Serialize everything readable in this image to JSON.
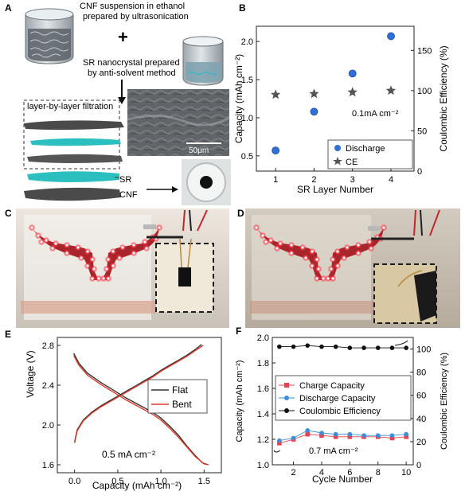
{
  "panels": {
    "A": {
      "letter": "A",
      "cnf_text_1": "CNF suspension in ethanol",
      "cnf_text_2": "prepared by ultrasonication",
      "plus": "+",
      "sr_text_1": "SR nanocrystal prepared",
      "sr_text_2": "by anti-solvent method",
      "filtration_label": "layer-by-layer filtration",
      "scale_bar": "50μm",
      "label_sr": "SR",
      "label_cnf": "CNF"
    },
    "B": {
      "letter": "B"
    },
    "C": {
      "letter": "C"
    },
    "D": {
      "letter": "D"
    },
    "E": {
      "letter": "E"
    },
    "F": {
      "letter": "F"
    }
  },
  "chart_data": [
    {
      "panel": "B",
      "type": "scatter",
      "xlabel": "SR Layer Number",
      "ylabel": "Capacity (mAh cm⁻²)",
      "y2label": "Coulombic Efficiency (%)",
      "x_ticks": [
        "1",
        "2",
        "3",
        "4"
      ],
      "y_ticks": [
        "0.5",
        "1.0",
        "1.5",
        "2.0"
      ],
      "y2_ticks": [
        "0",
        "50",
        "100",
        "150"
      ],
      "xlim": [
        0.5,
        4.6
      ],
      "ylim": [
        0.3,
        2.2
      ],
      "y2lim": [
        0,
        180
      ],
      "annotation": "0.1mA cm⁻²",
      "legend": [
        "Discharge",
        "CE"
      ],
      "series": [
        {
          "name": "Discharge",
          "axis": "left",
          "marker": "circle",
          "color": "#2f6fd6",
          "x": [
            1,
            2,
            3,
            4
          ],
          "y": [
            0.57,
            1.08,
            1.58,
            2.07
          ]
        },
        {
          "name": "CE",
          "axis": "right",
          "marker": "star",
          "color": "#555555",
          "x": [
            1,
            2,
            3,
            4
          ],
          "y": [
            95,
            96,
            98,
            100
          ]
        }
      ]
    },
    {
      "panel": "E",
      "type": "line",
      "xlabel": "Capacity (mAh cm⁻²)",
      "ylabel": "Voltage (V)",
      "x_ticks": [
        "0.0",
        "0.5",
        "1.0",
        "1.5"
      ],
      "y_ticks": [
        "1.6",
        "2.0",
        "2.4",
        "2.8"
      ],
      "xlim": [
        -0.2,
        1.7
      ],
      "ylim": [
        1.52,
        2.88
      ],
      "annotation": "0.5 mA cm⁻²",
      "legend": [
        "Flat",
        "Bent"
      ],
      "series": [
        {
          "name": "Flat",
          "color": "#333333",
          "curves": [
            {
              "x": [
                0.0,
                0.03,
                0.1,
                0.2,
                0.3,
                0.4,
                0.5,
                0.6,
                0.7,
                0.8,
                0.9,
                1.0,
                1.1,
                1.2,
                1.3,
                1.4,
                1.47
              ],
              "y": [
                1.83,
                1.95,
                2.05,
                2.13,
                2.19,
                2.24,
                2.29,
                2.34,
                2.39,
                2.44,
                2.49,
                2.55,
                2.6,
                2.65,
                2.7,
                2.76,
                2.81
              ]
            },
            {
              "x": [
                -0.01,
                0.05,
                0.15,
                0.3,
                0.45,
                0.6,
                0.75,
                0.9,
                1.0,
                1.1,
                1.2,
                1.3,
                1.4,
                1.48,
                1.55
              ],
              "y": [
                2.72,
                2.62,
                2.52,
                2.43,
                2.35,
                2.27,
                2.2,
                2.13,
                2.07,
                1.99,
                1.9,
                1.79,
                1.69,
                1.62,
                1.6
              ]
            }
          ]
        },
        {
          "name": "Bent",
          "color": "#e0392b",
          "curves": [
            {
              "x": [
                0.0,
                0.03,
                0.1,
                0.2,
                0.3,
                0.4,
                0.5,
                0.6,
                0.7,
                0.8,
                0.9,
                1.0,
                1.1,
                1.2,
                1.3,
                1.4,
                1.49
              ],
              "y": [
                1.82,
                1.94,
                2.04,
                2.12,
                2.18,
                2.23,
                2.28,
                2.33,
                2.38,
                2.43,
                2.48,
                2.54,
                2.59,
                2.64,
                2.69,
                2.75,
                2.8
              ]
            },
            {
              "x": [
                -0.01,
                0.05,
                0.15,
                0.3,
                0.45,
                0.6,
                0.75,
                0.9,
                1.0,
                1.1,
                1.2,
                1.3,
                1.4,
                1.5,
                1.55
              ],
              "y": [
                2.7,
                2.6,
                2.5,
                2.41,
                2.33,
                2.25,
                2.18,
                2.11,
                2.05,
                1.97,
                1.88,
                1.78,
                1.68,
                1.61,
                1.6
              ]
            }
          ]
        }
      ]
    },
    {
      "panel": "F",
      "type": "line",
      "xlabel": "Cycle Number",
      "ylabel": "Capacity (mAh cm⁻²)",
      "y2label": "Coulombic Efficiency (%)",
      "x_ticks": [
        "2",
        "4",
        "6",
        "8",
        "10"
      ],
      "y_ticks": [
        "1.0",
        "1.2",
        "1.4",
        "1.6",
        "1.8",
        "2.0"
      ],
      "y2_ticks": [
        "0",
        "20",
        "40",
        "60",
        "80",
        "100"
      ],
      "xlim": [
        0.5,
        10.5
      ],
      "ylim": [
        1.0,
        2.0
      ],
      "y2lim": [
        0,
        110
      ],
      "annotation": "0.7 mA cm⁻²",
      "legend": [
        "Charge Capacity",
        "Discharge Capacity",
        "Coulombic Efficiency"
      ],
      "series": [
        {
          "name": "Charge Capacity",
          "axis": "left",
          "marker": "square",
          "color": "#e8414f",
          "x": [
            1,
            2,
            3,
            4,
            5,
            6,
            7,
            8,
            9,
            10
          ],
          "y": [
            1.17,
            1.2,
            1.24,
            1.23,
            1.22,
            1.22,
            1.22,
            1.22,
            1.21,
            1.22
          ]
        },
        {
          "name": "Discharge Capacity",
          "axis": "left",
          "marker": "circle",
          "color": "#3b8fd9",
          "x": [
            1,
            2,
            3,
            4,
            5,
            6,
            7,
            8,
            9,
            10
          ],
          "y": [
            1.19,
            1.21,
            1.27,
            1.25,
            1.24,
            1.24,
            1.23,
            1.23,
            1.23,
            1.24
          ]
        },
        {
          "name": "Coulombic Efficiency",
          "axis": "right",
          "marker": "circle",
          "color": "#111111",
          "x": [
            1,
            2,
            3,
            4,
            5,
            6,
            7,
            8,
            9,
            10
          ],
          "y": [
            102,
            102,
            103,
            102,
            102,
            101,
            101,
            101,
            101,
            101
          ]
        }
      ]
    }
  ],
  "colors": {
    "sr_layer": "#2bbfbf",
    "cnf_layer": "#4a4a4a",
    "led_shape": "#a8262b",
    "led_glow": "#ff3344"
  }
}
